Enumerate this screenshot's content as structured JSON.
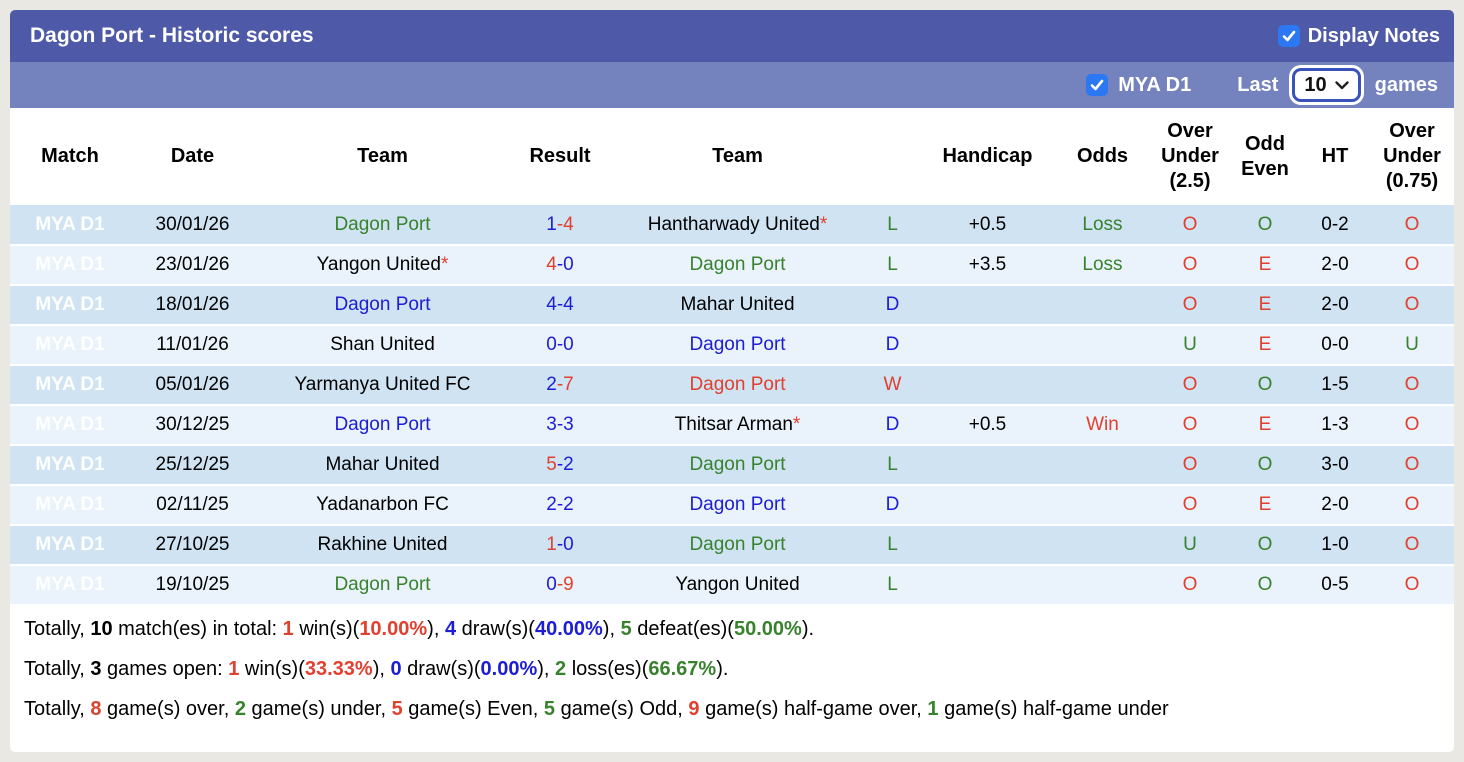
{
  "title": "Dagon Port - Historic scores",
  "display_notes": {
    "label": "Display Notes",
    "checked": true
  },
  "filter": {
    "league_label": "MYA D1",
    "league_checked": true,
    "last_label": "Last",
    "games_count": "10",
    "games_label": "games"
  },
  "colors": {
    "title_bar": "#4e5aa7",
    "filter_bar": "#7482bd",
    "league_cell": "#2c3a8c",
    "row_odd": "#cfe3f2",
    "row_even": "#eaf3fb",
    "win_red": "#e0402f",
    "loss_green": "#38822e",
    "draw_blue": "#1d1dd3",
    "checkbox_blue": "#2b78f2"
  },
  "table": {
    "headers": [
      "Match",
      "Date",
      "Team",
      "Result",
      "Team",
      "",
      "Handicap",
      "Odds",
      "Over Under (2.5)",
      "Odd Even",
      "HT",
      "Over Under (0.75)"
    ],
    "rows": [
      {
        "league": "MYA D1",
        "date": "30/01/26",
        "home": {
          "name": "Dagon Port",
          "color": "green",
          "star": false
        },
        "score": {
          "home": "1",
          "away": "4",
          "home_color": "blue",
          "away_color": "red"
        },
        "away": {
          "name": "Hantharwady United",
          "color": "black",
          "star": true
        },
        "outcome": {
          "letter": "L",
          "color": "green"
        },
        "handicap": "+0.5",
        "odds": {
          "text": "Loss",
          "color": "green"
        },
        "over_under_25": {
          "letter": "O",
          "color": "red"
        },
        "odd_even": {
          "letter": "O",
          "color": "green"
        },
        "ht": "0-2",
        "over_under_075": {
          "letter": "O",
          "color": "red"
        }
      },
      {
        "league": "MYA D1",
        "date": "23/01/26",
        "home": {
          "name": "Yangon United",
          "color": "black",
          "star": true
        },
        "score": {
          "home": "4",
          "away": "0",
          "home_color": "red",
          "away_color": "blue"
        },
        "away": {
          "name": "Dagon Port",
          "color": "green",
          "star": false
        },
        "outcome": {
          "letter": "L",
          "color": "green"
        },
        "handicap": "+3.5",
        "odds": {
          "text": "Loss",
          "color": "green"
        },
        "over_under_25": {
          "letter": "O",
          "color": "red"
        },
        "odd_even": {
          "letter": "E",
          "color": "red"
        },
        "ht": "2-0",
        "over_under_075": {
          "letter": "O",
          "color": "red"
        }
      },
      {
        "league": "MYA D1",
        "date": "18/01/26",
        "home": {
          "name": "Dagon Port",
          "color": "blue",
          "star": false
        },
        "score": {
          "home": "4",
          "away": "4",
          "home_color": "blue",
          "away_color": "blue"
        },
        "away": {
          "name": "Mahar United",
          "color": "black",
          "star": false
        },
        "outcome": {
          "letter": "D",
          "color": "blue"
        },
        "handicap": "",
        "odds": {
          "text": "",
          "color": "black"
        },
        "over_under_25": {
          "letter": "O",
          "color": "red"
        },
        "odd_even": {
          "letter": "E",
          "color": "red"
        },
        "ht": "2-0",
        "over_under_075": {
          "letter": "O",
          "color": "red"
        }
      },
      {
        "league": "MYA D1",
        "date": "11/01/26",
        "home": {
          "name": "Shan United",
          "color": "black",
          "star": false
        },
        "score": {
          "home": "0",
          "away": "0",
          "home_color": "blue",
          "away_color": "blue"
        },
        "away": {
          "name": "Dagon Port",
          "color": "blue",
          "star": false
        },
        "outcome": {
          "letter": "D",
          "color": "blue"
        },
        "handicap": "",
        "odds": {
          "text": "",
          "color": "black"
        },
        "over_under_25": {
          "letter": "U",
          "color": "green"
        },
        "odd_even": {
          "letter": "E",
          "color": "red"
        },
        "ht": "0-0",
        "over_under_075": {
          "letter": "U",
          "color": "green"
        }
      },
      {
        "league": "MYA D1",
        "date": "05/01/26",
        "home": {
          "name": "Yarmanya United FC",
          "color": "black",
          "star": false
        },
        "score": {
          "home": "2",
          "away": "7",
          "home_color": "blue",
          "away_color": "red"
        },
        "away": {
          "name": "Dagon Port",
          "color": "red",
          "star": false
        },
        "outcome": {
          "letter": "W",
          "color": "red"
        },
        "handicap": "",
        "odds": {
          "text": "",
          "color": "black"
        },
        "over_under_25": {
          "letter": "O",
          "color": "red"
        },
        "odd_even": {
          "letter": "O",
          "color": "green"
        },
        "ht": "1-5",
        "over_under_075": {
          "letter": "O",
          "color": "red"
        }
      },
      {
        "league": "MYA D1",
        "date": "30/12/25",
        "home": {
          "name": "Dagon Port",
          "color": "blue",
          "star": false
        },
        "score": {
          "home": "3",
          "away": "3",
          "home_color": "blue",
          "away_color": "blue"
        },
        "away": {
          "name": "Thitsar Arman",
          "color": "black",
          "star": true
        },
        "outcome": {
          "letter": "D",
          "color": "blue"
        },
        "handicap": "+0.5",
        "odds": {
          "text": "Win",
          "color": "red"
        },
        "over_under_25": {
          "letter": "O",
          "color": "red"
        },
        "odd_even": {
          "letter": "E",
          "color": "red"
        },
        "ht": "1-3",
        "over_under_075": {
          "letter": "O",
          "color": "red"
        }
      },
      {
        "league": "MYA D1",
        "date": "25/12/25",
        "home": {
          "name": "Mahar United",
          "color": "black",
          "star": false
        },
        "score": {
          "home": "5",
          "away": "2",
          "home_color": "red",
          "away_color": "blue"
        },
        "away": {
          "name": "Dagon Port",
          "color": "green",
          "star": false
        },
        "outcome": {
          "letter": "L",
          "color": "green"
        },
        "handicap": "",
        "odds": {
          "text": "",
          "color": "black"
        },
        "over_under_25": {
          "letter": "O",
          "color": "red"
        },
        "odd_even": {
          "letter": "O",
          "color": "green"
        },
        "ht": "3-0",
        "over_under_075": {
          "letter": "O",
          "color": "red"
        }
      },
      {
        "league": "MYA D1",
        "date": "02/11/25",
        "home": {
          "name": "Yadanarbon FC",
          "color": "black",
          "star": false
        },
        "score": {
          "home": "2",
          "away": "2",
          "home_color": "blue",
          "away_color": "blue"
        },
        "away": {
          "name": "Dagon Port",
          "color": "blue",
          "star": false
        },
        "outcome": {
          "letter": "D",
          "color": "blue"
        },
        "handicap": "",
        "odds": {
          "text": "",
          "color": "black"
        },
        "over_under_25": {
          "letter": "O",
          "color": "red"
        },
        "odd_even": {
          "letter": "E",
          "color": "red"
        },
        "ht": "2-0",
        "over_under_075": {
          "letter": "O",
          "color": "red"
        }
      },
      {
        "league": "MYA D1",
        "date": "27/10/25",
        "home": {
          "name": "Rakhine United",
          "color": "black",
          "star": false
        },
        "score": {
          "home": "1",
          "away": "0",
          "home_color": "red",
          "away_color": "blue"
        },
        "away": {
          "name": "Dagon Port",
          "color": "green",
          "star": false
        },
        "outcome": {
          "letter": "L",
          "color": "green"
        },
        "handicap": "",
        "odds": {
          "text": "",
          "color": "black"
        },
        "over_under_25": {
          "letter": "U",
          "color": "green"
        },
        "odd_even": {
          "letter": "O",
          "color": "green"
        },
        "ht": "1-0",
        "over_under_075": {
          "letter": "O",
          "color": "red"
        }
      },
      {
        "league": "MYA D1",
        "date": "19/10/25",
        "home": {
          "name": "Dagon Port",
          "color": "green",
          "star": false
        },
        "score": {
          "home": "0",
          "away": "9",
          "home_color": "blue",
          "away_color": "red"
        },
        "away": {
          "name": "Yangon United",
          "color": "black",
          "star": false
        },
        "outcome": {
          "letter": "L",
          "color": "green"
        },
        "handicap": "",
        "odds": {
          "text": "",
          "color": "black"
        },
        "over_under_25": {
          "letter": "O",
          "color": "red"
        },
        "odd_even": {
          "letter": "O",
          "color": "green"
        },
        "ht": "0-5",
        "over_under_075": {
          "letter": "O",
          "color": "red"
        }
      }
    ]
  },
  "summary": [
    [
      {
        "t": "Totally, "
      },
      {
        "t": "10",
        "b": 1
      },
      {
        "t": " match(es) in total: "
      },
      {
        "t": "1",
        "b": 1,
        "c": "red"
      },
      {
        "t": " win(s)("
      },
      {
        "t": "10.00%",
        "b": 1,
        "c": "red"
      },
      {
        "t": "), "
      },
      {
        "t": "4",
        "b": 1,
        "c": "blue"
      },
      {
        "t": " draw(s)("
      },
      {
        "t": "40.00%",
        "b": 1,
        "c": "blue"
      },
      {
        "t": "), "
      },
      {
        "t": "5",
        "b": 1,
        "c": "green"
      },
      {
        "t": " defeat(es)("
      },
      {
        "t": "50.00%",
        "b": 1,
        "c": "green"
      },
      {
        "t": ")."
      }
    ],
    [
      {
        "t": "Totally, "
      },
      {
        "t": "3",
        "b": 1
      },
      {
        "t": " games open: "
      },
      {
        "t": "1",
        "b": 1,
        "c": "red"
      },
      {
        "t": " win(s)("
      },
      {
        "t": "33.33%",
        "b": 1,
        "c": "red"
      },
      {
        "t": "), "
      },
      {
        "t": "0",
        "b": 1,
        "c": "blue"
      },
      {
        "t": " draw(s)("
      },
      {
        "t": "0.00%",
        "b": 1,
        "c": "blue"
      },
      {
        "t": "), "
      },
      {
        "t": "2",
        "b": 1,
        "c": "green"
      },
      {
        "t": " loss(es)("
      },
      {
        "t": "66.67%",
        "b": 1,
        "c": "green"
      },
      {
        "t": ")."
      }
    ],
    [
      {
        "t": "Totally, "
      },
      {
        "t": "8",
        "b": 1,
        "c": "red"
      },
      {
        "t": " game(s) over, "
      },
      {
        "t": "2",
        "b": 1,
        "c": "green"
      },
      {
        "t": " game(s) under, "
      },
      {
        "t": "5",
        "b": 1,
        "c": "red"
      },
      {
        "t": " game(s) Even, "
      },
      {
        "t": "5",
        "b": 1,
        "c": "green"
      },
      {
        "t": " game(s) Odd, "
      },
      {
        "t": "9",
        "b": 1,
        "c": "red"
      },
      {
        "t": " game(s) half-game over, "
      },
      {
        "t": "1",
        "b": 1,
        "c": "green"
      },
      {
        "t": " game(s) half-game under"
      }
    ]
  ]
}
